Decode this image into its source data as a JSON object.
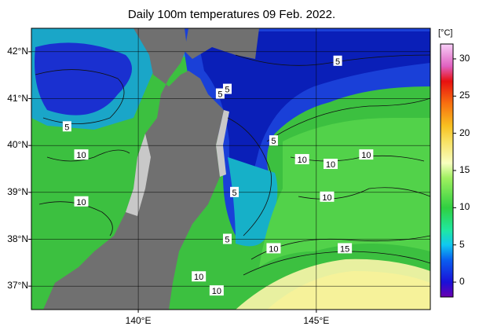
{
  "title": "Daily 100m temperatures 09 Feb. 2022.",
  "colors": {
    "land": "#707070",
    "shelf": "#c8c8c8",
    "cold": "#1a2fd0",
    "mid": "#39c24a",
    "warm": "#f6f29a"
  },
  "map": {
    "lat_range": [
      36.5,
      42.5
    ],
    "lon_range": [
      137.0,
      148.2
    ],
    "lat_labels": [
      "42°N",
      "41°N",
      "40°N",
      "39°N",
      "38°N",
      "37°N"
    ],
    "lat_values": [
      42,
      41,
      40,
      39,
      38,
      37
    ],
    "lon_labels": [
      "140°E",
      "145°E"
    ],
    "lon_values": [
      140,
      145
    ],
    "contour_labels": [
      {
        "text": "5",
        "lon": 142.3,
        "lat": 41.1
      },
      {
        "text": "5",
        "lon": 145.6,
        "lat": 41.8
      },
      {
        "text": "5",
        "lon": 142.5,
        "lat": 41.2
      },
      {
        "text": "5",
        "lon": 138.0,
        "lat": 40.4
      },
      {
        "text": "5",
        "lon": 143.8,
        "lat": 40.1
      },
      {
        "text": "5",
        "lon": 142.7,
        "lat": 39.0
      },
      {
        "text": "5",
        "lon": 142.5,
        "lat": 38.0
      },
      {
        "text": "10",
        "lon": 138.4,
        "lat": 39.8
      },
      {
        "text": "10",
        "lon": 138.4,
        "lat": 38.8
      },
      {
        "text": "10",
        "lon": 144.6,
        "lat": 39.7
      },
      {
        "text": "10",
        "lon": 145.4,
        "lat": 39.6
      },
      {
        "text": "10",
        "lon": 146.4,
        "lat": 39.8
      },
      {
        "text": "10",
        "lon": 145.3,
        "lat": 38.9
      },
      {
        "text": "10",
        "lon": 143.8,
        "lat": 37.8
      },
      {
        "text": "10",
        "lon": 141.7,
        "lat": 37.2
      },
      {
        "text": "10",
        "lon": 142.2,
        "lat": 36.9
      },
      {
        "text": "15",
        "lon": 145.8,
        "lat": 37.8
      }
    ]
  },
  "colorbar": {
    "unit": "[°C]",
    "ticks": [
      30,
      25,
      20,
      15,
      10,
      5,
      0
    ],
    "range": [
      -2,
      32
    ],
    "stops": [
      {
        "value": -2,
        "color": "#6a00b0"
      },
      {
        "value": 0,
        "color": "#1a10d8"
      },
      {
        "value": 3,
        "color": "#0a60f0"
      },
      {
        "value": 5,
        "color": "#10c8f0"
      },
      {
        "value": 7,
        "color": "#20e8a0"
      },
      {
        "value": 10,
        "color": "#30d040"
      },
      {
        "value": 14,
        "color": "#a0f060"
      },
      {
        "value": 16,
        "color": "#f8ffc0"
      },
      {
        "value": 19,
        "color": "#f8e060"
      },
      {
        "value": 21,
        "color": "#f8c020"
      },
      {
        "value": 24,
        "color": "#f87010"
      },
      {
        "value": 27,
        "color": "#e81010"
      },
      {
        "value": 29,
        "color": "#e060c0"
      },
      {
        "value": 32,
        "color": "#f8d0f8"
      }
    ]
  }
}
